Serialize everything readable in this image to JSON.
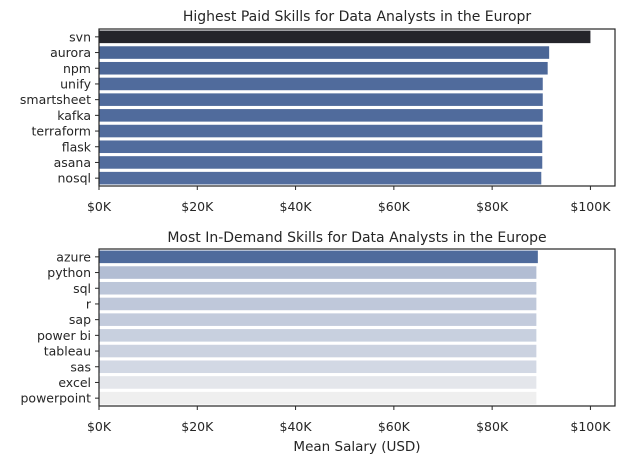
{
  "chart_data": [
    {
      "type": "bar",
      "orientation": "horizontal",
      "title": "Highest Paid Skills for Data Analysts in the Europr",
      "xlabel": "",
      "ylabel": "",
      "categories": [
        "svn",
        "aurora",
        "npm",
        "unify",
        "smartsheet",
        "kafka",
        "terraform",
        "flask",
        "asana",
        "nosql"
      ],
      "values": [
        100000,
        91600,
        91300,
        90300,
        90300,
        90300,
        90200,
        90200,
        90200,
        90000
      ],
      "colors": [
        "#25252b",
        "#4b6696",
        "#4d6899",
        "#506b9c",
        "#506b9c",
        "#506b9c",
        "#516c9d",
        "#516c9d",
        "#516c9d",
        "#526d9e"
      ],
      "xlim": [
        0,
        105000
      ],
      "xticks": [
        0,
        20000,
        40000,
        60000,
        80000,
        100000
      ],
      "xtick_labels": [
        "$0K",
        "$20K",
        "$40K",
        "$60K",
        "$80K",
        "$100K"
      ],
      "grid": false
    },
    {
      "type": "bar",
      "orientation": "horizontal",
      "title": "Most In-Demand Skills for Data Analysts in the Europe",
      "xlabel": "Mean Salary (USD)",
      "ylabel": "",
      "categories": [
        "azure",
        "python",
        "sql",
        "r",
        "sap",
        "power bi",
        "tableau",
        "sas",
        "excel",
        "powerpoint"
      ],
      "values": [
        89300,
        89000,
        89000,
        89000,
        89000,
        89000,
        89000,
        89000,
        89000,
        89000
      ],
      "colors": [
        "#4f6b9c",
        "#b2bdd3",
        "#bcc6d9",
        "#bfc8da",
        "#c3cbdc",
        "#c8d0df",
        "#cbd2e0",
        "#d2d8e4",
        "#e4e6eb",
        "#efefef"
      ],
      "xlim": [
        0,
        105000
      ],
      "xticks": [
        0,
        20000,
        40000,
        60000,
        80000,
        100000
      ],
      "xtick_labels": [
        "$0K",
        "$20K",
        "$40K",
        "$60K",
        "$80K",
        "$100K"
      ],
      "grid": false
    }
  ]
}
